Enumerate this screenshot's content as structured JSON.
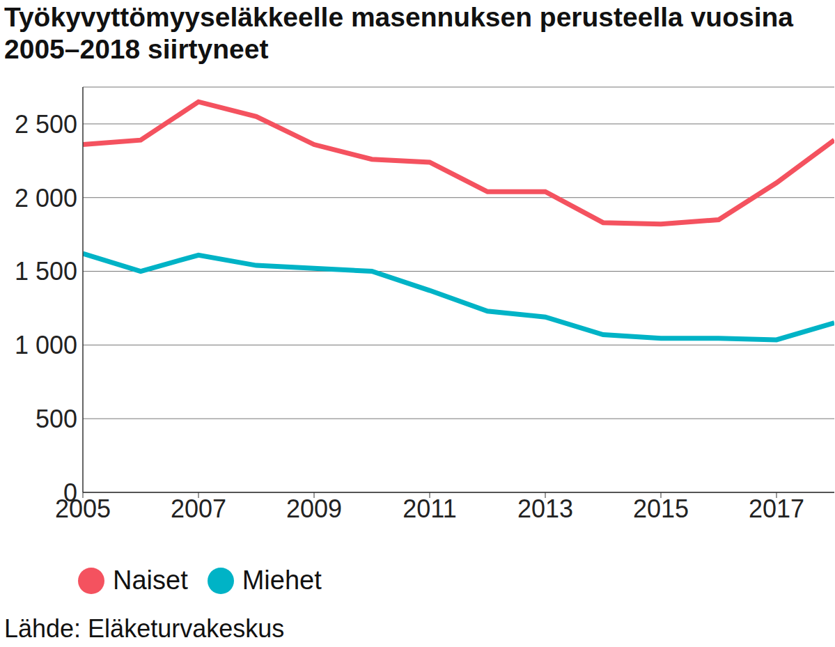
{
  "chart_data": {
    "type": "line",
    "title": "Työkyvyttömyyseläkkeelle masennuksen perusteella vuosina 2005–2018 siirtyneet",
    "source": "Lähde: Eläketurvakeskus",
    "x": [
      2005,
      2006,
      2007,
      2008,
      2009,
      2010,
      2011,
      2012,
      2013,
      2014,
      2015,
      2016,
      2017,
      2018
    ],
    "series": [
      {
        "name": "Naiset",
        "color": "#f4525f",
        "values": [
          2360,
          2390,
          2650,
          2550,
          2360,
          2260,
          2240,
          2040,
          2040,
          1830,
          1820,
          1850,
          2100,
          2390
        ]
      },
      {
        "name": "Miehet",
        "color": "#00b3c6",
        "values": [
          1620,
          1500,
          1610,
          1540,
          1520,
          1500,
          1370,
          1230,
          1190,
          1070,
          1045,
          1045,
          1035,
          1150
        ]
      }
    ],
    "xlim": [
      2005,
      2018
    ],
    "xticks": [
      2005,
      2007,
      2009,
      2011,
      2013,
      2015,
      2017
    ],
    "ylim": [
      0,
      2750
    ],
    "yticks": [
      0,
      500,
      {
        "value": 1000,
        "label": "1 000"
      },
      {
        "value": 1500,
        "label": "1 500"
      },
      {
        "value": 2000,
        "label": "2 000"
      },
      {
        "value": 2500,
        "label": "2 500"
      }
    ],
    "grid": true,
    "legend": "bottom"
  }
}
